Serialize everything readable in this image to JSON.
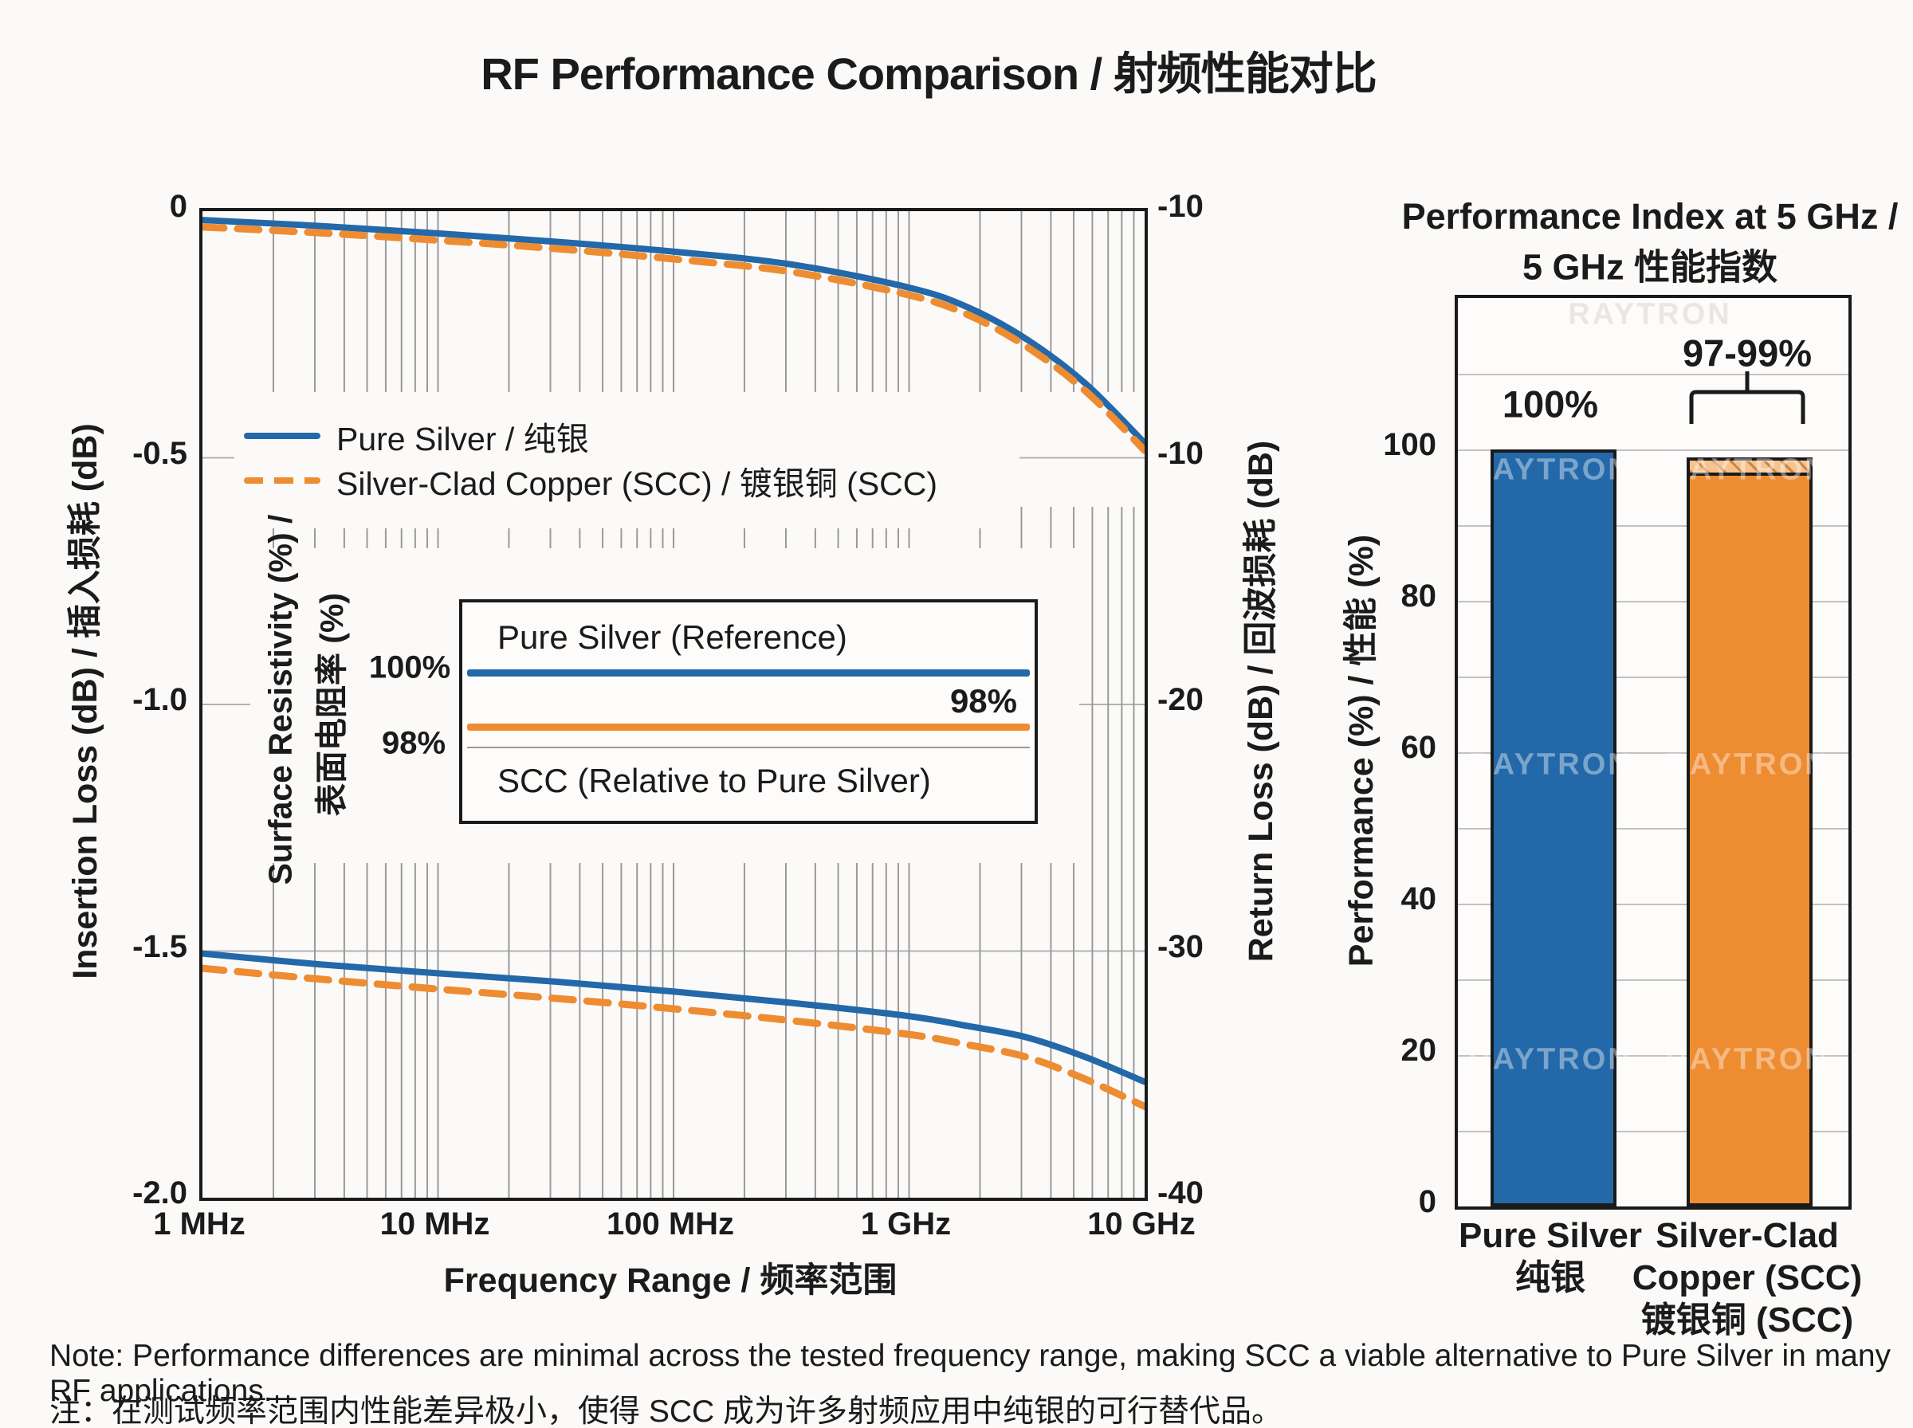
{
  "title": "RF Performance Comparison / 射频性能对比",
  "colors": {
    "blue": "#2368a9",
    "orange": "#ee8c31",
    "grid": "#9a9a9a",
    "grid_light": "#c2c2c2",
    "ink": "#1a1a1a",
    "hatch_bg": "#f6c28e",
    "watermark_on_bar": "rgba(255,255,255,0.40)",
    "watermark_bg": "rgba(140,140,140,0.18)"
  },
  "watermark_text": "RAYTRON",
  "main_chart": {
    "xlabel": "Frequency Range / 频率范围",
    "ylabel_left": "Insertion Loss (dB) / 插入损耗 (dB)",
    "ylabel_right": "Return Loss (dB) / 回波损耗 (dB)",
    "x_ticks": [
      "1 MHz",
      "10 MHz",
      "100 MHz",
      "1 GHz",
      "10 GHz"
    ],
    "y_ticks_left": [
      "0",
      "-0.5",
      "-1.0",
      "-1.5",
      "-2.0"
    ],
    "y_ticks_right": [
      "-10",
      "-10",
      "-20",
      "-30",
      "-40"
    ],
    "legend": [
      {
        "label": "Pure Silver / 纯银",
        "style": "solid",
        "color": "blue"
      },
      {
        "label": "Silver-Clad Copper (SCC) / 镀银铜 (SCC)",
        "style": "dashed",
        "color": "orange"
      }
    ]
  },
  "inset": {
    "ylabel_en": "Surface Resistivity (%) /",
    "ylabel_zh": "表面电阻率 (%)",
    "tick_top": "100%",
    "tick_bottom": "98%",
    "ref_label": "Pure Silver (Reference)",
    "scc_value_label": "98%",
    "scc_label": "SCC (Relative to Pure Silver)"
  },
  "bar_chart": {
    "title_line1": "Performance Index at 5 GHz /",
    "title_line2": "5 GHz 性能指数",
    "ylabel": "Performance (%) / 性能 (%)",
    "y_ticks": [
      "0",
      "20",
      "40",
      "60",
      "80",
      "100"
    ],
    "value_labels": [
      "100%",
      "97-99%"
    ],
    "categories": [
      [
        "Pure Silver",
        "纯银"
      ],
      [
        "Silver-Clad",
        "Copper (SCC)",
        "镀银铜 (SCC)"
      ]
    ]
  },
  "note_line1": "Note: Performance differences are minimal across the tested frequency range, making SCC a viable alternative to Pure Silver in many RF applications.",
  "note_line2": "注：在测试频率范围内性能差异极小，使得 SCC 成为许多射频应用中纯银的可行替代品。",
  "chart_data": [
    {
      "type": "line",
      "title": "RF Performance Comparison / 射频性能对比",
      "xlabel": "Frequency Range / 频率范围",
      "ylabel_left": "Insertion Loss (dB) / 插入损耗 (dB)",
      "ylabel_right": "Return Loss (dB) / 回波损耗 (dB)",
      "x_scale": "log",
      "x_range_mhz": [
        1,
        10000
      ],
      "ylim_left": [
        -2.0,
        0
      ],
      "y_ticks_right_as_printed": [
        "-10",
        "-10",
        "-20",
        "-30",
        "-40"
      ],
      "grid": true,
      "legend_position": "upper-left-inside",
      "series": [
        {
          "name": "Pure Silver / 纯银 — Insertion Loss",
          "color": "blue",
          "style": "solid",
          "axis": "left",
          "points_log10MHz_dB": [
            [
              0,
              -0.018
            ],
            [
              0.5,
              -0.03
            ],
            [
              1,
              -0.045
            ],
            [
              1.5,
              -0.062
            ],
            [
              2,
              -0.082
            ],
            [
              2.5,
              -0.108
            ],
            [
              3,
              -0.155
            ],
            [
              3.25,
              -0.195
            ],
            [
              3.5,
              -0.26
            ],
            [
              3.75,
              -0.35
            ],
            [
              4,
              -0.47
            ]
          ]
        },
        {
          "name": "Silver-Clad Copper (SCC) / 镀银铜 (SCC) — Insertion Loss",
          "color": "orange",
          "style": "dashed",
          "axis": "left",
          "points_log10MHz_dB": [
            [
              0,
              -0.032
            ],
            [
              0.5,
              -0.044
            ],
            [
              1,
              -0.059
            ],
            [
              1.5,
              -0.076
            ],
            [
              2,
              -0.097
            ],
            [
              2.5,
              -0.123
            ],
            [
              3,
              -0.17
            ],
            [
              3.25,
              -0.21
            ],
            [
              3.5,
              -0.275
            ],
            [
              3.75,
              -0.365
            ],
            [
              4,
              -0.485
            ]
          ]
        },
        {
          "name": "Pure Silver / 纯银 — Return Loss",
          "color": "blue",
          "style": "solid",
          "axis": "left",
          "points_log10MHz_dB": [
            [
              0,
              -1.505
            ],
            [
              0.5,
              -1.527
            ],
            [
              1,
              -1.545
            ],
            [
              1.5,
              -1.562
            ],
            [
              2,
              -1.582
            ],
            [
              2.5,
              -1.605
            ],
            [
              3,
              -1.632
            ],
            [
              3.25,
              -1.652
            ],
            [
              3.5,
              -1.675
            ],
            [
              3.75,
              -1.715
            ],
            [
              4,
              -1.765
            ]
          ]
        },
        {
          "name": "Silver-Clad Copper (SCC) / 镀银铜 (SCC) — Return Loss",
          "color": "orange",
          "style": "dashed",
          "axis": "left",
          "points_log10MHz_dB": [
            [
              0,
              -1.535
            ],
            [
              0.5,
              -1.557
            ],
            [
              1,
              -1.577
            ],
            [
              1.5,
              -1.596
            ],
            [
              2,
              -1.617
            ],
            [
              2.5,
              -1.641
            ],
            [
              3,
              -1.669
            ],
            [
              3.25,
              -1.69
            ],
            [
              3.5,
              -1.715
            ],
            [
              3.75,
              -1.76
            ],
            [
              4,
              -1.815
            ]
          ]
        }
      ]
    },
    {
      "type": "line",
      "title": "Surface Resistivity inset",
      "ylabel": "Surface Resistivity (%) / 表面电阻率 (%)",
      "y_tick_labels": [
        "100%",
        "98%"
      ],
      "series": [
        {
          "name": "Pure Silver (Reference)",
          "color": "blue",
          "style": "solid",
          "value_pct": 100
        },
        {
          "name": "SCC (Relative to Pure Silver)",
          "color": "orange",
          "style": "solid",
          "value_pct": 98,
          "label": "98%"
        }
      ]
    },
    {
      "type": "bar",
      "title": "Performance Index at 5 GHz / 5 GHz 性能指数",
      "ylabel": "Performance (%) / 性能 (%)",
      "categories": [
        "Pure Silver 纯银",
        "Silver-Clad Copper (SCC) 镀银铜 (SCC)"
      ],
      "values": [
        100,
        99
      ],
      "value_labels": [
        "100%",
        "97-99%"
      ],
      "scc_range_band_pct": [
        97,
        99
      ],
      "ylim": [
        0,
        120
      ],
      "y_ticks": [
        0,
        20,
        40,
        60,
        80,
        100
      ],
      "grid_step": 10,
      "bar_colors": [
        "blue",
        "orange"
      ]
    }
  ]
}
